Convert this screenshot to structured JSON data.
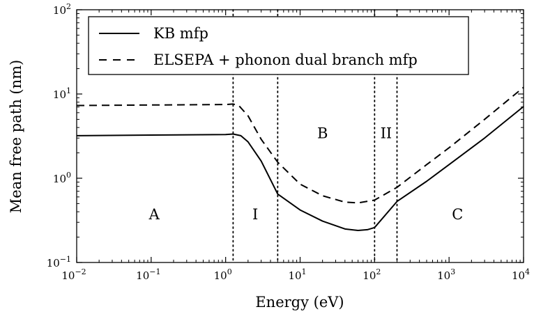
{
  "chart_data": {
    "type": "line",
    "xlabel": "Energy (eV)",
    "ylabel": "Mean free path (nm)",
    "xscale": "log",
    "yscale": "log",
    "xlim": [
      0.01,
      10000
    ],
    "ylim": [
      0.1,
      100
    ],
    "grid": false,
    "legend_position": "top-left",
    "x_ticks": [
      {
        "value": 0.01,
        "base": "10",
        "exp": "−2"
      },
      {
        "value": 0.1,
        "base": "10",
        "exp": "−1"
      },
      {
        "value": 1,
        "base": "10",
        "exp": "0"
      },
      {
        "value": 10,
        "base": "10",
        "exp": "1"
      },
      {
        "value": 100,
        "base": "10",
        "exp": "2"
      },
      {
        "value": 1000,
        "base": "10",
        "exp": "3"
      },
      {
        "value": 10000,
        "base": "10",
        "exp": "4"
      }
    ],
    "y_ticks": [
      {
        "value": 0.1,
        "base": "10",
        "exp": "−1"
      },
      {
        "value": 1,
        "base": "10",
        "exp": "0"
      },
      {
        "value": 10,
        "base": "10",
        "exp": "1"
      },
      {
        "value": 100,
        "base": "10",
        "exp": "2"
      }
    ],
    "series": [
      {
        "name": "KB mfp",
        "style": "solid",
        "x": [
          0.01,
          0.1,
          1.0,
          1.26,
          1.6,
          2.0,
          3.0,
          5.0,
          10,
          20,
          40,
          60,
          80,
          100,
          200,
          500,
          1000,
          3000,
          10000
        ],
        "y": [
          3.2,
          3.25,
          3.3,
          3.35,
          3.2,
          2.7,
          1.6,
          0.65,
          0.42,
          0.31,
          0.25,
          0.24,
          0.245,
          0.26,
          0.53,
          0.92,
          1.45,
          3.0,
          7.1
        ]
      },
      {
        "name": "ELSEPA + phonon dual branch mfp",
        "style": "dashed",
        "x": [
          0.01,
          0.1,
          1.0,
          1.26,
          1.5,
          2.0,
          3.0,
          5.0,
          10,
          20,
          40,
          60,
          100,
          200,
          500,
          1000,
          3000,
          10000
        ],
        "y": [
          7.3,
          7.4,
          7.5,
          7.6,
          7.3,
          5.5,
          2.9,
          1.55,
          0.85,
          0.62,
          0.52,
          0.51,
          0.55,
          0.78,
          1.45,
          2.3,
          5.0,
          12.0
        ]
      }
    ],
    "vertical_lines": [
      1.26,
      5.0,
      100,
      200
    ],
    "annotations": [
      {
        "text": "A",
        "x": 0.11,
        "y": 0.37
      },
      {
        "text": "I",
        "x": 2.5,
        "y": 0.37
      },
      {
        "text": "B",
        "x": 20,
        "y": 3.4
      },
      {
        "text": "II",
        "x": 143,
        "y": 3.4
      },
      {
        "text": "C",
        "x": 1300,
        "y": 0.37
      }
    ]
  }
}
